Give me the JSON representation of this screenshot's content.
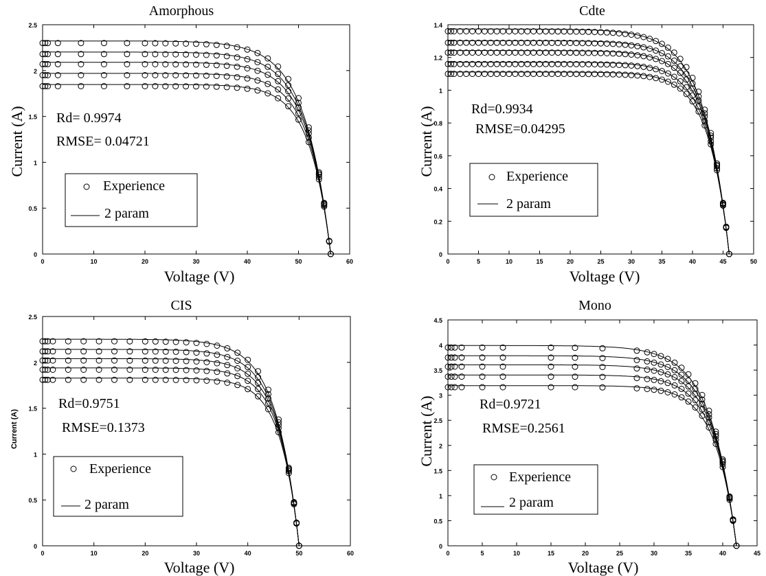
{
  "panels": [
    {
      "title": "Amorphous",
      "xlabel": "Voltage (V)",
      "ylabel": "Current (A)",
      "stats": {
        "rd": "Rd= 0.9974",
        "rmse": "RMSE= 0.04721"
      },
      "legend": {
        "markers": "Experience",
        "line": "2 param"
      }
    },
    {
      "title": "Cdte",
      "xlabel": "Voltage (V)",
      "ylabel": "Current (A)",
      "stats": {
        "rd": "Rd=0.9934",
        "rmse": "RMSE=0.04295"
      },
      "legend": {
        "markers": "Experience",
        "line": "2 param"
      }
    },
    {
      "title": "CIS",
      "xlabel": "Voltage (V)",
      "ylabel": "Current (A)",
      "stats": {
        "rd": "Rd=0.9751",
        "rmse": "RMSE=0.1373"
      },
      "legend": {
        "markers": "Experience",
        "line": "2 param"
      }
    },
    {
      "title": "Mono",
      "xlabel": "Voltage (V)",
      "ylabel": "Current (A)",
      "stats": {
        "rd": "Rd=0.9721",
        "rmse": "RMSE=0.2561"
      },
      "legend": {
        "markers": "Experience",
        "line": "2 param"
      }
    }
  ],
  "chart_data": [
    {
      "type": "line",
      "title": "Amorphous",
      "xlabel": "Voltage (V)",
      "ylabel": "Current (A)",
      "xlim": [
        0,
        60
      ],
      "ylim": [
        0,
        2.5
      ],
      "xticks": [
        0,
        10,
        20,
        30,
        40,
        50,
        60
      ],
      "yticks": [
        0,
        0.5,
        1,
        1.5,
        2,
        2.5
      ],
      "voc": 56.3,
      "isc": [
        2.3,
        2.18,
        2.07,
        1.95,
        1.83
      ],
      "exp_x": [
        0,
        0.5,
        1,
        3,
        7.5,
        12,
        16.5,
        20,
        22,
        24,
        26,
        28,
        30,
        32,
        34,
        36,
        38,
        40,
        42,
        44,
        46,
        48,
        50,
        52,
        54,
        55,
        56,
        56.3
      ],
      "series": [
        {
          "name": "Experience",
          "style": "markers"
        },
        {
          "name": "2 param",
          "style": "line"
        }
      ]
    },
    {
      "type": "line",
      "title": "Cdte",
      "xlabel": "Voltage (V)",
      "ylabel": "Current (A)",
      "xlim": [
        0,
        50
      ],
      "ylim": [
        0,
        1.4
      ],
      "xticks": [
        0,
        5,
        10,
        15,
        20,
        25,
        30,
        35,
        40,
        45,
        50
      ],
      "yticks": [
        0,
        0.2,
        0.4,
        0.6,
        0.8,
        1,
        1.2,
        1.4
      ],
      "voc": 46,
      "isc": [
        1.36,
        1.29,
        1.23,
        1.16,
        1.1
      ],
      "exp_x": [
        0,
        0.5,
        1,
        2,
        3,
        4,
        5,
        6,
        7,
        8,
        9,
        10,
        11,
        12,
        13,
        14,
        15,
        16,
        17,
        18,
        19,
        20,
        21,
        22,
        23,
        24,
        25,
        26,
        27,
        28,
        29,
        30,
        31,
        32,
        33,
        34,
        35,
        36,
        37,
        38,
        39,
        40,
        41,
        42,
        43,
        44,
        45,
        45.5,
        46
      ],
      "series": [
        {
          "name": "Experience",
          "style": "markers"
        },
        {
          "name": "2 param",
          "style": "line"
        }
      ]
    },
    {
      "type": "line",
      "title": "CIS",
      "xlabel": "Voltage (V)",
      "ylabel": "Current (A)",
      "xlim": [
        0,
        60
      ],
      "ylim": [
        0,
        2.5
      ],
      "xticks": [
        0,
        10,
        20,
        30,
        40,
        50,
        60
      ],
      "yticks": [
        0,
        0.5,
        1,
        1.5,
        2,
        2.5
      ],
      "voc": 50,
      "isc": [
        2.23,
        2.12,
        2.02,
        1.92,
        1.81
      ],
      "exp_x": [
        0,
        0.5,
        1,
        2,
        5,
        8,
        11,
        14,
        17,
        20,
        22,
        24,
        26,
        28,
        30,
        32,
        34,
        36,
        38,
        40,
        42,
        44,
        46,
        48,
        49,
        49.5,
        50
      ],
      "series": [
        {
          "name": "Experience",
          "style": "markers"
        },
        {
          "name": "2 param",
          "style": "line"
        }
      ]
    },
    {
      "type": "line",
      "title": "Mono",
      "xlabel": "Voltage (V)",
      "ylabel": "Current (A)",
      "xlim": [
        0,
        45
      ],
      "ylim": [
        0,
        4.5
      ],
      "xticks": [
        0,
        5,
        10,
        15,
        20,
        25,
        30,
        35,
        40,
        45
      ],
      "yticks": [
        0,
        0.5,
        1,
        1.5,
        2,
        2.5,
        3,
        3.5,
        4,
        4.5
      ],
      "voc": 42,
      "isc": [
        3.95,
        3.75,
        3.57,
        3.37,
        3.16
      ],
      "exp_x": [
        0,
        0.5,
        1,
        2,
        5,
        8,
        15,
        18.5,
        22.5,
        27.5,
        29,
        30,
        31,
        32,
        33,
        34,
        35,
        36,
        37,
        38,
        39,
        40,
        41,
        41.5,
        42
      ],
      "series": [
        {
          "name": "Experience",
          "style": "markers"
        },
        {
          "name": "2 param",
          "style": "line"
        }
      ]
    }
  ]
}
